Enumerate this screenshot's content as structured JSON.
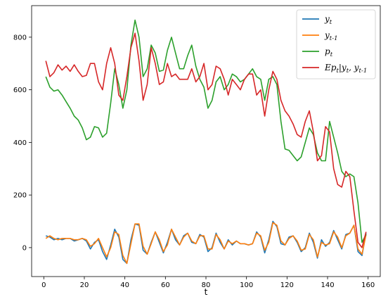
{
  "chart_data": {
    "type": "line",
    "xlabel": "t",
    "ylabel": "",
    "title": "",
    "xlim": [
      -6,
      166
    ],
    "ylim": [
      -110,
      920
    ],
    "xticks": [
      0,
      20,
      40,
      60,
      80,
      100,
      120,
      140,
      160
    ],
    "yticks": [
      0,
      200,
      400,
      600,
      800
    ],
    "grid": false,
    "legend_position": "top-right",
    "legend": [
      "y_t",
      "y_{t-1}",
      "p_t",
      "Ep_t|y_t, y_{t-1}"
    ],
    "series": [
      {
        "name": "y_t",
        "color": "#1f77b4",
        "x": [
          1,
          3,
          5,
          7,
          9,
          11,
          13,
          15,
          17,
          19,
          21,
          23,
          25,
          27,
          29,
          31,
          33,
          35,
          37,
          39,
          41,
          43,
          45,
          47,
          49,
          51,
          53,
          55,
          57,
          59,
          61,
          63,
          65,
          67,
          69,
          71,
          73,
          75,
          77,
          79,
          81,
          83,
          85,
          87,
          89,
          91,
          93,
          95,
          97,
          99,
          101,
          103,
          105,
          107,
          109,
          111,
          113,
          115,
          117,
          119,
          121,
          123,
          125,
          127,
          129,
          131,
          133,
          135,
          137,
          139,
          141,
          143,
          145,
          147,
          149,
          151,
          153,
          155,
          157,
          159
        ],
        "y": [
          45,
          40,
          30,
          35,
          30,
          35,
          35,
          25,
          30,
          35,
          25,
          -5,
          20,
          30,
          -15,
          -45,
          10,
          70,
          40,
          -45,
          -60,
          30,
          90,
          85,
          -10,
          -25,
          20,
          60,
          20,
          -20,
          20,
          70,
          30,
          10,
          45,
          55,
          20,
          15,
          50,
          40,
          -15,
          0,
          55,
          20,
          -5,
          30,
          10,
          25,
          15,
          15,
          10,
          15,
          60,
          40,
          -20,
          30,
          100,
          80,
          15,
          10,
          40,
          45,
          20,
          -15,
          0,
          55,
          20,
          -40,
          30,
          5,
          20,
          65,
          30,
          -5,
          50,
          55,
          85,
          -15,
          -30,
          55
        ]
      },
      {
        "name": "y_{t-1}",
        "color": "#ff7f0e",
        "x": [
          1,
          3,
          5,
          7,
          9,
          11,
          13,
          15,
          17,
          19,
          21,
          23,
          25,
          27,
          29,
          31,
          33,
          35,
          37,
          39,
          41,
          43,
          45,
          47,
          49,
          51,
          53,
          55,
          57,
          59,
          61,
          63,
          65,
          67,
          69,
          71,
          73,
          75,
          77,
          79,
          81,
          83,
          85,
          87,
          89,
          91,
          93,
          95,
          97,
          99,
          101,
          103,
          105,
          107,
          109,
          111,
          113,
          115,
          117,
          119,
          121,
          123,
          125,
          127,
          129,
          131,
          133,
          135,
          137,
          139,
          141,
          143,
          145,
          147,
          149,
          151,
          153,
          155,
          157,
          159
        ],
        "y": [
          35,
          45,
          35,
          30,
          35,
          35,
          35,
          30,
          30,
          35,
          30,
          5,
          15,
          35,
          0,
          -35,
          0,
          60,
          50,
          -30,
          -60,
          15,
          90,
          90,
          5,
          -25,
          15,
          60,
          30,
          -15,
          10,
          70,
          40,
          10,
          40,
          55,
          25,
          15,
          45,
          45,
          -5,
          -5,
          50,
          30,
          -5,
          25,
          15,
          25,
          15,
          15,
          10,
          15,
          55,
          45,
          -10,
          20,
          95,
          85,
          25,
          10,
          35,
          45,
          25,
          -10,
          -5,
          50,
          30,
          -35,
          20,
          10,
          15,
          60,
          40,
          0,
          45,
          55,
          85,
          -5,
          -25,
          50
        ]
      },
      {
        "name": "p_t",
        "color": "#2ca02c",
        "x": [
          1,
          3,
          5,
          7,
          9,
          11,
          13,
          15,
          17,
          19,
          21,
          23,
          25,
          27,
          29,
          31,
          33,
          35,
          37,
          39,
          41,
          43,
          45,
          47,
          49,
          51,
          53,
          55,
          57,
          59,
          61,
          63,
          65,
          67,
          69,
          71,
          73,
          75,
          77,
          79,
          81,
          83,
          85,
          87,
          89,
          91,
          93,
          95,
          97,
          99,
          101,
          103,
          105,
          107,
          109,
          111,
          113,
          115,
          117,
          119,
          121,
          123,
          125,
          127,
          129,
          131,
          133,
          135,
          137,
          139,
          141,
          143,
          145,
          147,
          149,
          151,
          153,
          155,
          157,
          159
        ],
        "y": [
          650,
          610,
          595,
          600,
          580,
          555,
          530,
          500,
          485,
          455,
          410,
          420,
          460,
          455,
          420,
          435,
          550,
          680,
          620,
          530,
          600,
          770,
          865,
          800,
          650,
          680,
          770,
          740,
          670,
          675,
          750,
          800,
          740,
          680,
          680,
          730,
          770,
          690,
          640,
          610,
          530,
          560,
          630,
          650,
          600,
          620,
          660,
          650,
          630,
          640,
          660,
          680,
          650,
          640,
          560,
          640,
          650,
          620,
          480,
          375,
          370,
          350,
          330,
          345,
          400,
          455,
          430,
          360,
          330,
          330,
          480,
          420,
          360,
          290,
          270,
          280,
          270,
          170,
          20,
          50
        ]
      },
      {
        "name": "Ep_t|y_t, y_{t-1}",
        "color": "#d62728",
        "x": [
          1,
          3,
          5,
          7,
          9,
          11,
          13,
          15,
          17,
          19,
          21,
          23,
          25,
          27,
          29,
          31,
          33,
          35,
          37,
          39,
          41,
          43,
          45,
          47,
          49,
          51,
          53,
          55,
          57,
          59,
          61,
          63,
          65,
          67,
          69,
          71,
          73,
          75,
          77,
          79,
          81,
          83,
          85,
          87,
          89,
          91,
          93,
          95,
          97,
          99,
          101,
          103,
          105,
          107,
          109,
          111,
          113,
          115,
          117,
          119,
          121,
          123,
          125,
          127,
          129,
          131,
          133,
          135,
          137,
          139,
          141,
          143,
          145,
          147,
          149,
          151,
          153,
          155,
          157,
          159
        ],
        "y": [
          710,
          650,
          665,
          695,
          675,
          690,
          670,
          695,
          670,
          650,
          655,
          700,
          700,
          630,
          600,
          700,
          760,
          700,
          580,
          560,
          650,
          760,
          815,
          710,
          560,
          620,
          760,
          700,
          620,
          630,
          700,
          650,
          660,
          640,
          640,
          640,
          680,
          630,
          650,
          700,
          600,
          620,
          690,
          680,
          640,
          580,
          640,
          620,
          600,
          640,
          660,
          660,
          580,
          600,
          500,
          600,
          670,
          640,
          560,
          520,
          500,
          470,
          430,
          420,
          480,
          520,
          440,
          330,
          350,
          460,
          440,
          300,
          240,
          230,
          290,
          270,
          140,
          20,
          0,
          60
        ]
      }
    ]
  }
}
